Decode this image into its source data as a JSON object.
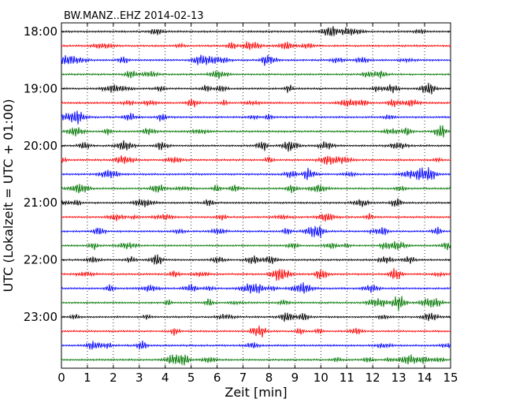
{
  "chart_data": {
    "type": "line",
    "chart_kind": "dayplot",
    "title": "BW.MANZ..EHZ 2014-02-13",
    "xlabel": "Zeit  [min]",
    "ylabel": "UTC (Lokalzeit = UTC + 01:00)",
    "xlim": [
      0,
      15
    ],
    "x_ticks": [
      "0",
      "1",
      "2",
      "3",
      "4",
      "5",
      "6",
      "7",
      "8",
      "9",
      "10",
      "11",
      "12",
      "13",
      "14",
      "15"
    ],
    "y_ticks": [
      "18:00",
      "19:00",
      "20:00",
      "21:00",
      "22:00",
      "23:00"
    ],
    "grid": "vertical dotted lines at each minute",
    "trace_interval_min": 15,
    "trace_start": "18:00",
    "trace_end": "23:45",
    "trace_count": 24,
    "trace_color_cycle": [
      "#000000",
      "#ff0000",
      "#0000ff",
      "#007700"
    ]
  }
}
